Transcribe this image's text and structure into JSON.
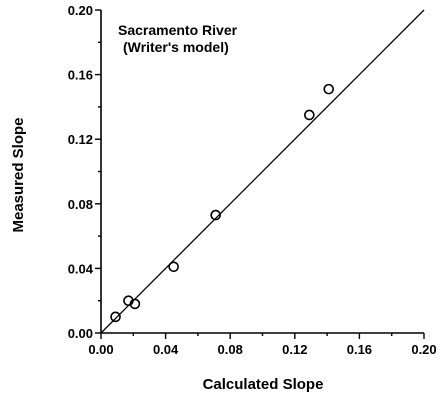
{
  "chart_data": {
    "type": "scatter",
    "annotation": [
      "Sacramento River",
      "(Writer's model)"
    ],
    "xlabel": "Calculated Slope",
    "ylabel": "Measured Slope",
    "xlim": [
      0,
      0.2
    ],
    "ylim": [
      0,
      0.2
    ],
    "xticks": [
      "0.00",
      "0.04",
      "0.08",
      "0.12",
      "0.16",
      "0.20"
    ],
    "yticks": [
      "0.00",
      "0.04",
      "0.08",
      "0.12",
      "0.16",
      "0.20"
    ],
    "grid": false,
    "series": [
      {
        "marker": "open-circle",
        "points": [
          {
            "x": 0.009,
            "y": 0.01
          },
          {
            "x": 0.017,
            "y": 0.02
          },
          {
            "x": 0.021,
            "y": 0.018
          },
          {
            "x": 0.045,
            "y": 0.041
          },
          {
            "x": 0.071,
            "y": 0.073
          },
          {
            "x": 0.129,
            "y": 0.135
          },
          {
            "x": 0.141,
            "y": 0.151
          }
        ]
      }
    ],
    "reference_line": {
      "x": [
        0,
        0.2
      ],
      "y": [
        0,
        0.2
      ]
    }
  }
}
